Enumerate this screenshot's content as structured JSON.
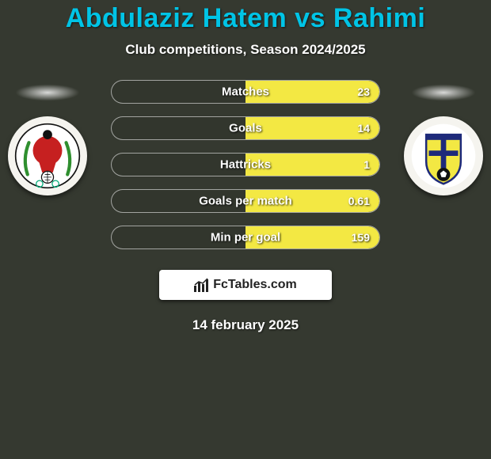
{
  "title": "Abdulaziz Hatem vs Rahimi",
  "subtitle": "Club competitions, Season 2024/2025",
  "date": "14 february 2025",
  "brand": {
    "label": "FcTables.com"
  },
  "colors": {
    "left_fill": "#00c4e6",
    "right_fill": "#f3e843",
    "title_color": "#00c4e6"
  },
  "rows": [
    {
      "label": "Matches",
      "right_value": "23",
      "left_value": "",
      "left_pct": 0,
      "right_pct": 100
    },
    {
      "label": "Goals",
      "right_value": "14",
      "left_value": "",
      "left_pct": 0,
      "right_pct": 100
    },
    {
      "label": "Hattricks",
      "right_value": "1",
      "left_value": "",
      "left_pct": 0,
      "right_pct": 100
    },
    {
      "label": "Goals per match",
      "right_value": "0.61",
      "left_value": "",
      "left_pct": 0,
      "right_pct": 100
    },
    {
      "label": "Min per goal",
      "right_value": "159",
      "left_value": "",
      "left_pct": 0,
      "right_pct": 100
    }
  ],
  "crest_left": {
    "name": "left-club-crest"
  },
  "crest_right": {
    "name": "right-club-crest"
  }
}
